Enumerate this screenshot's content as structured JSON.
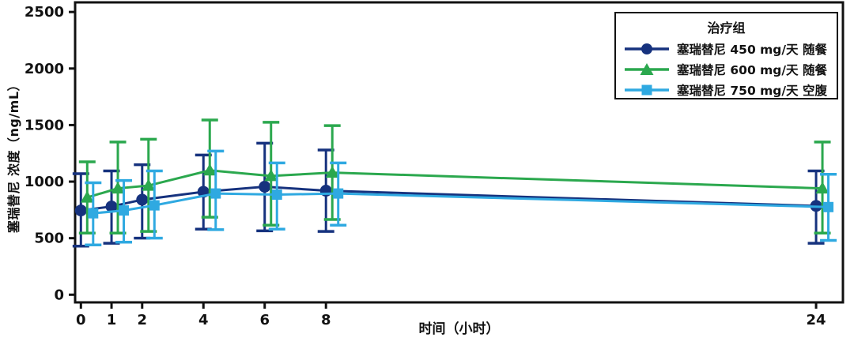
{
  "figure": {
    "background": "#ffffff",
    "border_color": "#111111"
  },
  "chart_data": {
    "type": "line",
    "title": "",
    "xlabel": "时间（小时）",
    "ylabel": "塞瑞替尼 浓度（ng/mL）",
    "x": [
      0,
      1,
      2,
      4,
      6,
      8,
      24
    ],
    "x_tick_labels": [
      "0",
      "1",
      "2",
      "4",
      "6",
      "8",
      "24"
    ],
    "y_ticks": [
      0,
      500,
      1000,
      1500,
      2000,
      2500
    ],
    "y_tick_labels": [
      "0",
      "500",
      "1000",
      "1500",
      "2000",
      "2500"
    ],
    "ylim": [
      0,
      2583
    ],
    "xlim": [
      -0.19,
      24.9
    ],
    "grid": false,
    "error_bars": true,
    "legend": {
      "title": "治疗组",
      "position": "top-right",
      "border": true
    },
    "series": [
      {
        "name": "塞瑞替尼 450 mg/天 随餐",
        "color": "#16327e",
        "marker": "circle",
        "mean": [
          745,
          780,
          840,
          910,
          955,
          920,
          785
        ],
        "upper": [
          1070,
          1095,
          1150,
          1235,
          1340,
          1280,
          1095
        ],
        "lower": [
          430,
          455,
          500,
          580,
          565,
          560,
          455
        ]
      },
      {
        "name": "塞瑞替尼 600 mg/天 随餐",
        "color": "#2ba84e",
        "marker": "triangle",
        "mean": [
          860,
          940,
          965,
          1100,
          1050,
          1080,
          940
        ],
        "upper": [
          1175,
          1350,
          1375,
          1545,
          1525,
          1495,
          1350
        ],
        "lower": [
          545,
          545,
          560,
          685,
          615,
          665,
          545
        ]
      },
      {
        "name": "塞瑞替尼 750 mg/天 空腹",
        "color": "#2fa9e1",
        "marker": "square",
        "mean": [
          720,
          745,
          790,
          895,
          885,
          895,
          775
        ],
        "upper": [
          990,
          1010,
          1095,
          1270,
          1165,
          1165,
          1065
        ],
        "lower": [
          440,
          465,
          500,
          575,
          580,
          615,
          480
        ]
      }
    ]
  }
}
